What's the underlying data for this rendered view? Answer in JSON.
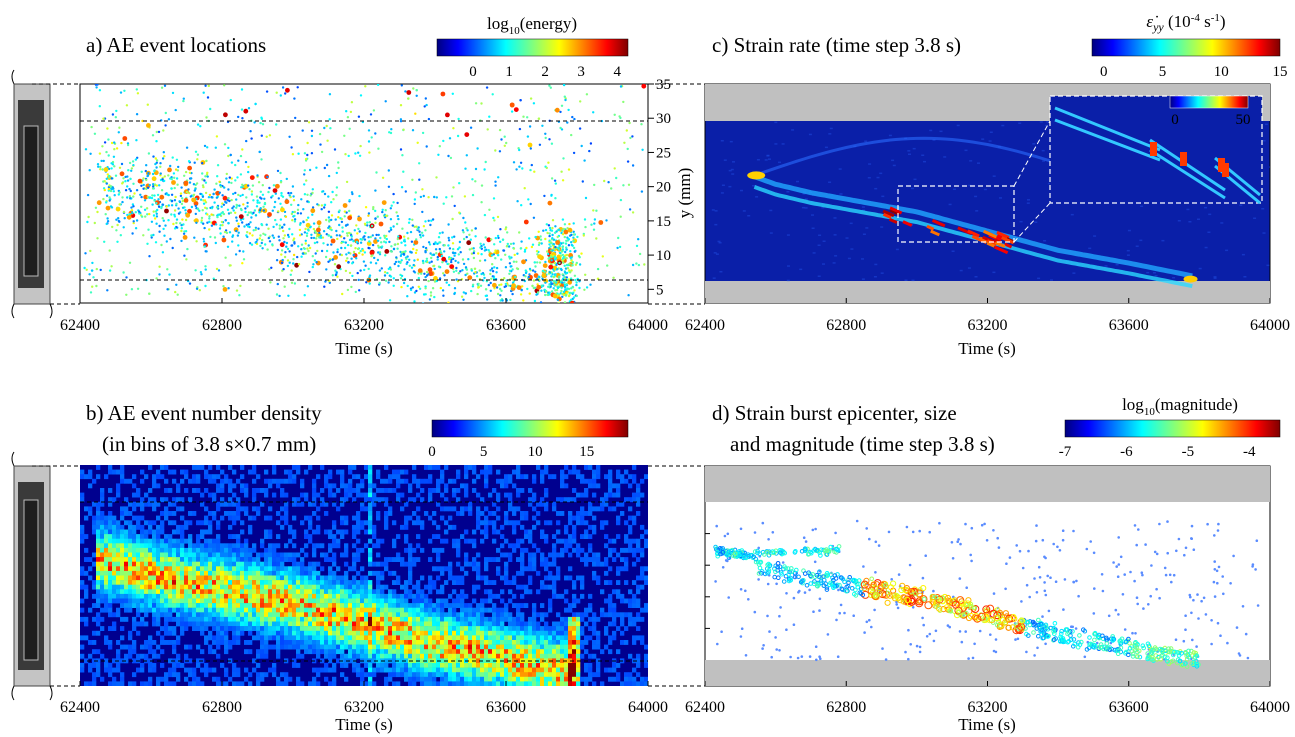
{
  "figure": {
    "panels": {
      "a": {
        "title": "a) AE event locations",
        "colorbar_label": "log",
        "colorbar_sub": "10",
        "colorbar_label2": "(energy)"
      },
      "b": {
        "title_line1": "b) AE event number density",
        "title_line2": "(in bins of 3.8 s×0.7 mm)"
      },
      "c": {
        "title": "c) Strain rate (time step 3.8 s)",
        "colorbar_label": "(10",
        "colorbar_sup": "-4",
        "colorbar_label2": " s",
        "colorbar_sup2": "-1",
        "colorbar_label3": ")"
      },
      "d": {
        "title_line1": "d) Strain burst epicenter, size",
        "title_line2": "and magnitude (time step 3.8 s)",
        "colorbar_label": "log",
        "colorbar_sub": "10",
        "colorbar_label2": "(magnitude)"
      }
    }
  },
  "colors": {
    "gray_band": "#c0c0c0",
    "colormap": [
      "#00007f",
      "#0000ff",
      "#007fff",
      "#00ffff",
      "#7fff7f",
      "#ffff00",
      "#ff7f00",
      "#ff0000",
      "#7f0000"
    ]
  },
  "chart_data": [
    {
      "id": "a",
      "type": "scatter",
      "title": "a) AE event locations",
      "xlabel": "Time (s)",
      "ylabel": "y (mm)",
      "xlim": [
        62400,
        64000
      ],
      "ylim": [
        3,
        35
      ],
      "xticks": [
        62400,
        62800,
        63200,
        63600,
        64000
      ],
      "yticks": [
        5,
        10,
        15,
        20,
        25,
        30,
        35
      ],
      "colorbar": {
        "label": "log10(energy)",
        "range": [
          -1,
          4.3
        ],
        "ticks": [
          0,
          1,
          2,
          3,
          4
        ]
      },
      "trend_path": [
        [
          62480,
          21
        ],
        [
          62600,
          19
        ],
        [
          62800,
          17
        ],
        [
          63000,
          15
        ],
        [
          63200,
          12
        ],
        [
          63400,
          9
        ],
        [
          63600,
          7
        ],
        [
          63780,
          5
        ]
      ]
    },
    {
      "id": "b",
      "type": "heatmap",
      "title": "b) AE event number density (in bins of 3.8 s×0.7 mm)",
      "xlabel": "Time (s)",
      "xlim": [
        62400,
        64000
      ],
      "xticks": [
        62400,
        62800,
        63200,
        63600,
        64000
      ],
      "colorbar": {
        "range": [
          0,
          19
        ],
        "ticks": [
          0,
          5,
          10,
          15
        ]
      }
    },
    {
      "id": "c",
      "type": "heatmap",
      "title": "c) Strain rate (time step 3.8 s)",
      "xlabel": "Time (s)",
      "xlim": [
        62400,
        64000
      ],
      "xticks": [
        62400,
        62800,
        63200,
        63600,
        64000
      ],
      "colorbar": {
        "label": "ε̇yy (10-4 s-1)",
        "range": [
          -1,
          15
        ],
        "ticks": [
          0,
          5,
          10,
          15
        ]
      },
      "inset_colorbar": {
        "ticks": [
          0,
          50
        ]
      }
    },
    {
      "id": "d",
      "type": "scatter",
      "title": "d) Strain burst epicenter, size and magnitude (time step 3.8 s)",
      "xlabel": "Time (s)",
      "xlim": [
        62400,
        64000
      ],
      "xticks": [
        62400,
        62800,
        63200,
        63600,
        64000
      ],
      "colorbar": {
        "label": "log10(magnitude)",
        "range": [
          -7,
          -3.5
        ],
        "ticks": [
          -7,
          -6,
          -5,
          -4
        ]
      }
    }
  ]
}
